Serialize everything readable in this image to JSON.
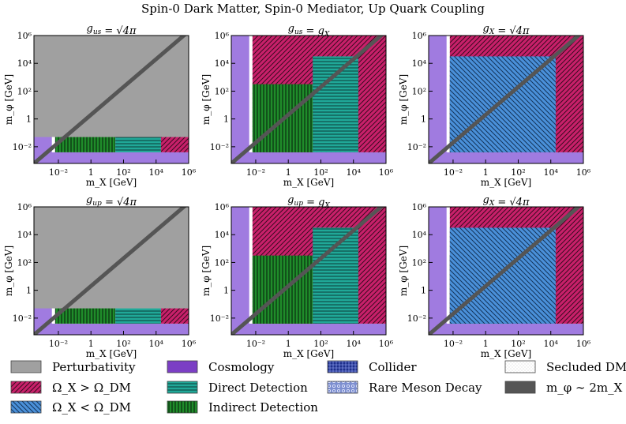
{
  "chart_data": {
    "type": "region-map",
    "title": "Spin-0 Dark Matter, Spin-0 Mediator, Up Quark Coupling",
    "xlabel": "m_X [GeV]",
    "ylabel": "m_φ [GeV]",
    "x_tick_labels": [
      "10⁻²",
      "1",
      "10²",
      "10⁴",
      "10⁶"
    ],
    "y_tick_labels": [
      "10⁶",
      "10⁴",
      "10²",
      "1",
      "10⁻²"
    ],
    "xlim_log10": [
      -3.5,
      6
    ],
    "ylim_log10": [
      -3.2,
      6
    ],
    "panels": [
      {
        "title": "g_us = √4π",
        "regions": [
          {
            "legend": "Perturbativity",
            "x": [
              -3.5,
              6
            ],
            "y": [
              -1.3,
              6
            ]
          },
          {
            "legend": "Indirect Detection",
            "x": [
              -2.2,
              1.5
            ],
            "y": [
              -2.4,
              -1.3
            ]
          },
          {
            "legend": "Direct Detection",
            "x": [
              1.5,
              4.3
            ],
            "y": [
              -2.4,
              -1.3
            ]
          },
          {
            "legend": "Ω_X > Ω_DM",
            "x": [
              4.3,
              6
            ],
            "y": [
              -2.4,
              -1.3
            ]
          }
        ]
      },
      {
        "title": "g_us = g_X",
        "regions": [
          {
            "legend": "Ω_X > Ω_DM",
            "x": [
              -2.2,
              6
            ],
            "y": [
              -2.4,
              6
            ]
          },
          {
            "legend": "Indirect Detection",
            "x": [
              -2.2,
              1.5
            ],
            "y": [
              -2.4,
              2.5
            ]
          },
          {
            "legend": "Direct Detection",
            "x": [
              1.5,
              4.3
            ],
            "y": [
              -2.4,
              4.5
            ]
          }
        ]
      },
      {
        "title": "g_X = √4π",
        "regions": [
          {
            "legend": "Ω_X > Ω_DM",
            "x": [
              -2.2,
              6
            ],
            "y": [
              -2.4,
              6
            ]
          },
          {
            "legend": "Indirect Detection",
            "x": [
              -2.2,
              1.5
            ],
            "y": [
              -2.4,
              2.5
            ]
          },
          {
            "legend": "Ω_X < Ω_DM",
            "x": [
              -2.2,
              4.3
            ],
            "y": [
              -2.4,
              4.5
            ]
          }
        ]
      },
      {
        "title": "g_up = √4π",
        "regions": [
          {
            "legend": "Perturbativity",
            "x": [
              -3.5,
              6
            ],
            "y": [
              -1.3,
              6
            ]
          },
          {
            "legend": "Indirect Detection",
            "x": [
              -2.2,
              1.5
            ],
            "y": [
              -2.4,
              -1.3
            ]
          },
          {
            "legend": "Direct Detection",
            "x": [
              1.5,
              4.3
            ],
            "y": [
              -2.4,
              -1.3
            ]
          },
          {
            "legend": "Ω_X > Ω_DM",
            "x": [
              4.3,
              6
            ],
            "y": [
              -2.4,
              -1.3
            ]
          }
        ]
      },
      {
        "title": "g_up = g_X",
        "regions": [
          {
            "legend": "Ω_X > Ω_DM",
            "x": [
              -2.2,
              6
            ],
            "y": [
              -2.4,
              6
            ]
          },
          {
            "legend": "Indirect Detection",
            "x": [
              -2.2,
              1.5
            ],
            "y": [
              -2.4,
              2.5
            ]
          },
          {
            "legend": "Direct Detection",
            "x": [
              1.5,
              4.3
            ],
            "y": [
              -2.4,
              4.5
            ]
          }
        ]
      },
      {
        "title": "g_X = √4π",
        "regions": [
          {
            "legend": "Ω_X > Ω_DM",
            "x": [
              -2.2,
              6
            ],
            "y": [
              -2.4,
              6
            ]
          },
          {
            "legend": "Indirect Detection",
            "x": [
              -2.2,
              1.5
            ],
            "y": [
              -2.4,
              2.5
            ]
          },
          {
            "legend": "Ω_X < Ω_DM",
            "x": [
              -2.2,
              4.3
            ],
            "y": [
              -2.4,
              4.5
            ]
          }
        ]
      }
    ],
    "legend": [
      {
        "label": "Perturbativity",
        "color": "#a0a0a0"
      },
      {
        "label": "Ω_X > Ω_DM",
        "color": "#c8206a"
      },
      {
        "label": "Ω_X < Ω_DM",
        "color": "#4a90d9"
      },
      {
        "label": "Cosmology",
        "color": "#7b3fc4"
      },
      {
        "label": "Direct Detection",
        "color": "#20a898"
      },
      {
        "label": "Indirect Detection",
        "color": "#1f8c2a"
      },
      {
        "label": "Collider",
        "color": "#1d2e8a"
      },
      {
        "label": "Rare Meson Decay",
        "color": "#7d8fd0"
      },
      {
        "label": "Secluded DM",
        "color": "#f4f4f4"
      },
      {
        "label": "m_φ ∼ 2m_X",
        "color": "#555555"
      }
    ],
    "line": {
      "label": "m_φ ∼ 2m_X",
      "relation": "log10(m_φ) = log10(m_X) + log10(2)"
    }
  }
}
